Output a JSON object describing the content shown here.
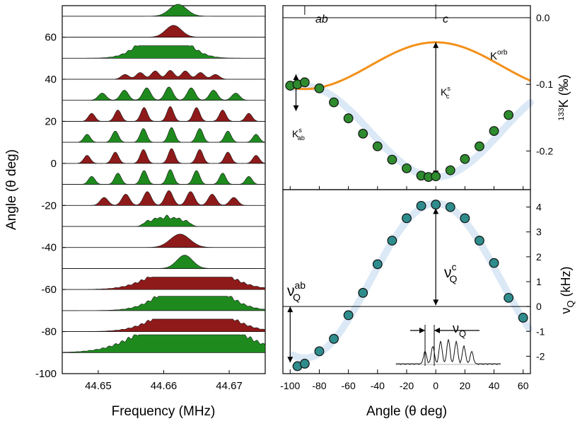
{
  "chart_data": [
    {
      "type": "area",
      "panel": "left",
      "title": "",
      "xlabel": "Frequency (MHz)",
      "ylabel": "Angle (θ deg)",
      "xlim": [
        44.6445,
        44.6755
      ],
      "ylim": [
        -100,
        75
      ],
      "xticks": [
        "44.65",
        "44.66",
        "44.67"
      ],
      "xtick_values": [
        44.65,
        44.66,
        44.67
      ],
      "yticks": [
        "-100",
        "-80",
        "-60",
        "-40",
        "-20",
        "0",
        "20",
        "40",
        "60"
      ],
      "ytick_values": [
        -100,
        -80,
        -60,
        -40,
        -20,
        0,
        20,
        40,
        60
      ],
      "spectra": [
        {
          "angle": 70,
          "color": "green",
          "center": 44.6622,
          "width": 0.0013,
          "amp": 8,
          "lines": 1,
          "spacing": 0
        },
        {
          "angle": 60,
          "color": "darkred",
          "center": 44.6615,
          "width": 0.0012,
          "amp": 8,
          "lines": 1,
          "spacing": 0
        },
        {
          "angle": 50,
          "color": "green",
          "center": 44.66,
          "width": 0.003,
          "amp": 7,
          "lines": 5,
          "spacing": 0.0008
        },
        {
          "angle": 40,
          "color": "darkred",
          "center": 44.661,
          "width": 0.0006,
          "amp": 6,
          "lines": 7,
          "spacing": 0.0023
        },
        {
          "angle": 30,
          "color": "green",
          "center": 44.6608,
          "width": 0.0006,
          "amp": 9,
          "lines": 7,
          "spacing": 0.0034
        },
        {
          "angle": 20,
          "color": "darkred",
          "center": 44.661,
          "width": 0.0005,
          "amp": 10,
          "lines": 7,
          "spacing": 0.004
        },
        {
          "angle": 10,
          "color": "green",
          "center": 44.6612,
          "width": 0.0005,
          "amp": 10,
          "lines": 7,
          "spacing": 0.0043
        },
        {
          "angle": 0,
          "color": "darkred",
          "center": 44.6612,
          "width": 0.0005,
          "amp": 10,
          "lines": 7,
          "spacing": 0.0043
        },
        {
          "angle": -10,
          "color": "green",
          "center": 44.661,
          "width": 0.0005,
          "amp": 10,
          "lines": 7,
          "spacing": 0.004
        },
        {
          "angle": -20,
          "color": "darkred",
          "center": 44.6608,
          "width": 0.0006,
          "amp": 10,
          "lines": 7,
          "spacing": 0.0033
        },
        {
          "angle": -30,
          "color": "green",
          "center": 44.6605,
          "width": 0.0006,
          "amp": 8,
          "lines": 5,
          "spacing": 0.0015
        },
        {
          "angle": -40,
          "color": "darkred",
          "center": 44.6625,
          "width": 0.0015,
          "amp": 9,
          "lines": 1,
          "spacing": 0
        },
        {
          "angle": -50,
          "color": "green",
          "center": 44.6632,
          "width": 0.0012,
          "amp": 9,
          "lines": 1,
          "spacing": 0
        },
        {
          "angle": -60,
          "color": "darkred",
          "center": 44.664,
          "width": 0.0045,
          "amp": 7,
          "lines": 5,
          "spacing": 0.0012
        },
        {
          "angle": -70,
          "color": "green",
          "center": 44.6645,
          "width": 0.004,
          "amp": 8,
          "lines": 5,
          "spacing": 0.001
        },
        {
          "angle": -80,
          "color": "darkred",
          "center": 44.6645,
          "width": 0.0045,
          "amp": 7,
          "lines": 5,
          "spacing": 0.001
        },
        {
          "angle": -90,
          "color": "green",
          "center": 44.664,
          "width": 0.006,
          "amp": 10,
          "lines": 5,
          "spacing": 0.0012
        }
      ]
    },
    {
      "type": "scatter",
      "panel": "right-top",
      "xlabel": "",
      "ylabel": "133K (‰)",
      "ylabel_sup": "133",
      "ylabel_main": "K (‰)",
      "xlim": [
        -105,
        65
      ],
      "ylim": [
        -0.258,
        0.018
      ],
      "yticks": [
        "0.0",
        "-0.1",
        "-0.2"
      ],
      "ytick_values": [
        0.0,
        -0.1,
        -0.2
      ],
      "reference_line_y": 0.0,
      "top_labels": {
        "ab": "ab",
        "c": "c"
      },
      "top_label_angles": {
        "ab": -90,
        "c": 0
      },
      "series": [
        {
          "name": "K",
          "marker": "green-circle",
          "x": [
            -100,
            -95,
            -90,
            -80,
            -70,
            -60,
            -50,
            -40,
            -30,
            -20,
            -10,
            -5,
            0,
            10,
            20,
            30,
            40,
            50
          ],
          "y": [
            -0.102,
            -0.1,
            -0.097,
            -0.106,
            -0.127,
            -0.151,
            -0.174,
            -0.193,
            -0.213,
            -0.226,
            -0.237,
            -0.239,
            -0.238,
            -0.229,
            -0.212,
            -0.193,
            -0.17,
            -0.146
          ]
        },
        {
          "name": "K fit",
          "style": "lightblue-band",
          "function": "K_iso + K_aniso*cos(2*theta)",
          "K_iso": -0.171,
          "K_aniso": -0.068
        },
        {
          "name": "Korb",
          "style": "orange-line",
          "function": "K_iso + K_aniso*cos(2*theta)",
          "K_iso": -0.072,
          "K_aniso": 0.035
        }
      ],
      "annotations": {
        "Korb": {
          "main": "K",
          "sup": "orb"
        },
        "Kc": {
          "main": "K",
          "sup": "s",
          "sub": "c"
        },
        "Kab": {
          "main": "K",
          "sup": "s",
          "sub": "ab"
        }
      }
    },
    {
      "type": "scatter",
      "panel": "right-bottom",
      "xlabel": "Angle (θ deg)",
      "ylabel": "νQ (kHz)",
      "ylabel_main": "ν",
      "ylabel_sub": "Q",
      "ylabel_unit": " (kHz)",
      "xlim": [
        -105,
        65
      ],
      "ylim": [
        -2.7,
        4.7
      ],
      "xticks": [
        "-100",
        "-80",
        "-60",
        "-40",
        "-20",
        "0",
        "20",
        "40",
        "60"
      ],
      "xtick_values": [
        -100,
        -80,
        -60,
        -40,
        -20,
        0,
        20,
        40,
        60
      ],
      "yticks": [
        "4",
        "3",
        "2",
        "1",
        "0",
        "-1",
        "-2"
      ],
      "ytick_values": [
        4,
        3,
        2,
        1,
        0,
        -1,
        -2
      ],
      "reference_line_y": 0.0,
      "series": [
        {
          "name": "nuQ",
          "marker": "teal-circle",
          "x": [
            -95,
            -90,
            -80,
            -70,
            -60,
            -50,
            -40,
            -30,
            -20,
            -10,
            0,
            10,
            20,
            30,
            40,
            50,
            60
          ],
          "y": [
            -2.4,
            -2.3,
            -1.8,
            -1.3,
            -0.35,
            0.55,
            1.7,
            2.65,
            3.55,
            4.05,
            4.1,
            4.0,
            3.55,
            2.65,
            1.75,
            0.35,
            -0.45
          ]
        },
        {
          "name": "nuQ fit",
          "style": "lightblue-band",
          "function": "A*(3*cos^2(theta)-1)/2",
          "A": 4.15
        }
      ],
      "annotations": {
        "nuQab": {
          "main": "ν",
          "sub": "Q",
          "sup": "ab"
        },
        "nuQc": {
          "main": "ν",
          "sub": "Q",
          "sup": "c"
        },
        "nuQinset": {
          "main": "ν",
          "sub": "Q"
        }
      }
    }
  ]
}
